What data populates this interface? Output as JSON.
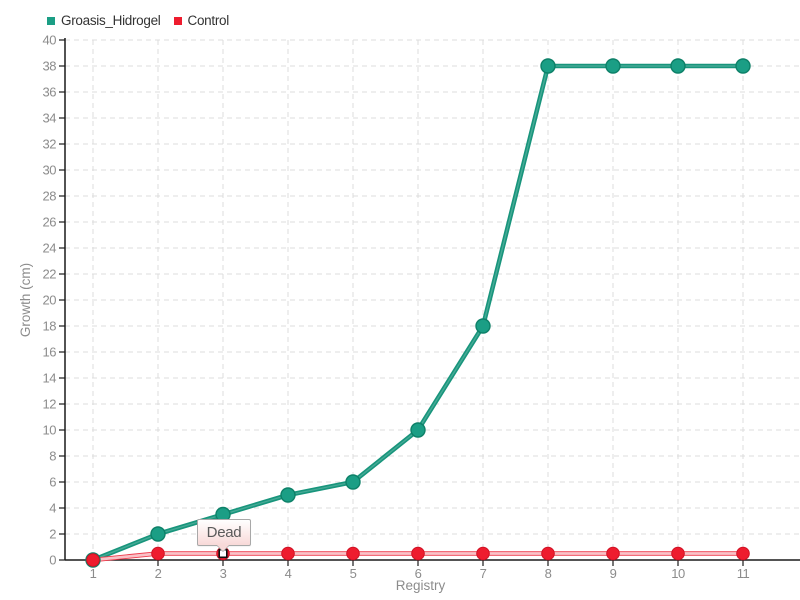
{
  "chart_data": {
    "type": "line",
    "x": [
      1,
      2,
      3,
      4,
      5,
      6,
      7,
      8,
      9,
      10,
      11
    ],
    "series": [
      {
        "name": "Groasis_Hidrogel",
        "color": "#1b9e85",
        "line": {
          "outer": "#18957c",
          "outer_width": 4.6,
          "core": "rgba(255,255,255,0.20)",
          "core_width": 1.4
        },
        "marker": {
          "radius": 7,
          "fill": "#1b9e85",
          "edge": "#0d8068",
          "edge_width": 1.4
        },
        "values": [
          0,
          2,
          3.5,
          5,
          6,
          10,
          18,
          38,
          38,
          38,
          38
        ]
      },
      {
        "name": "Control",
        "color": "#ee1c2e",
        "line": {
          "outer": "#ee3b4c",
          "outer_width": 4.6,
          "core": "#f9c2c7",
          "core_width": 2.8
        },
        "marker": {
          "radius": 6.3,
          "fill": "#ee1c2e",
          "edge": "#d01225",
          "edge_width": 1
        },
        "values": [
          0,
          0.5,
          0.5,
          0.5,
          0.5,
          0.5,
          0.5,
          0.5,
          0.5,
          0.5,
          0.5
        ]
      }
    ],
    "xlabel": "Registry",
    "ylabel": "Growth (cm)",
    "ylim": [
      0,
      40
    ],
    "ytick_step": 2,
    "xticks": [
      1,
      2,
      3,
      4,
      5,
      6,
      7,
      8,
      9,
      10,
      11
    ],
    "grid": true,
    "legend_position": "top-left",
    "annotation": {
      "text": "Dead",
      "series": "Control",
      "x": 3
    },
    "colors": {
      "grid": "#dcdcdc",
      "axis": "#1a1a1a",
      "tick_label": "#8c8c8c",
      "axis_label": "#8c8c8c",
      "background": "#ffffff"
    }
  }
}
